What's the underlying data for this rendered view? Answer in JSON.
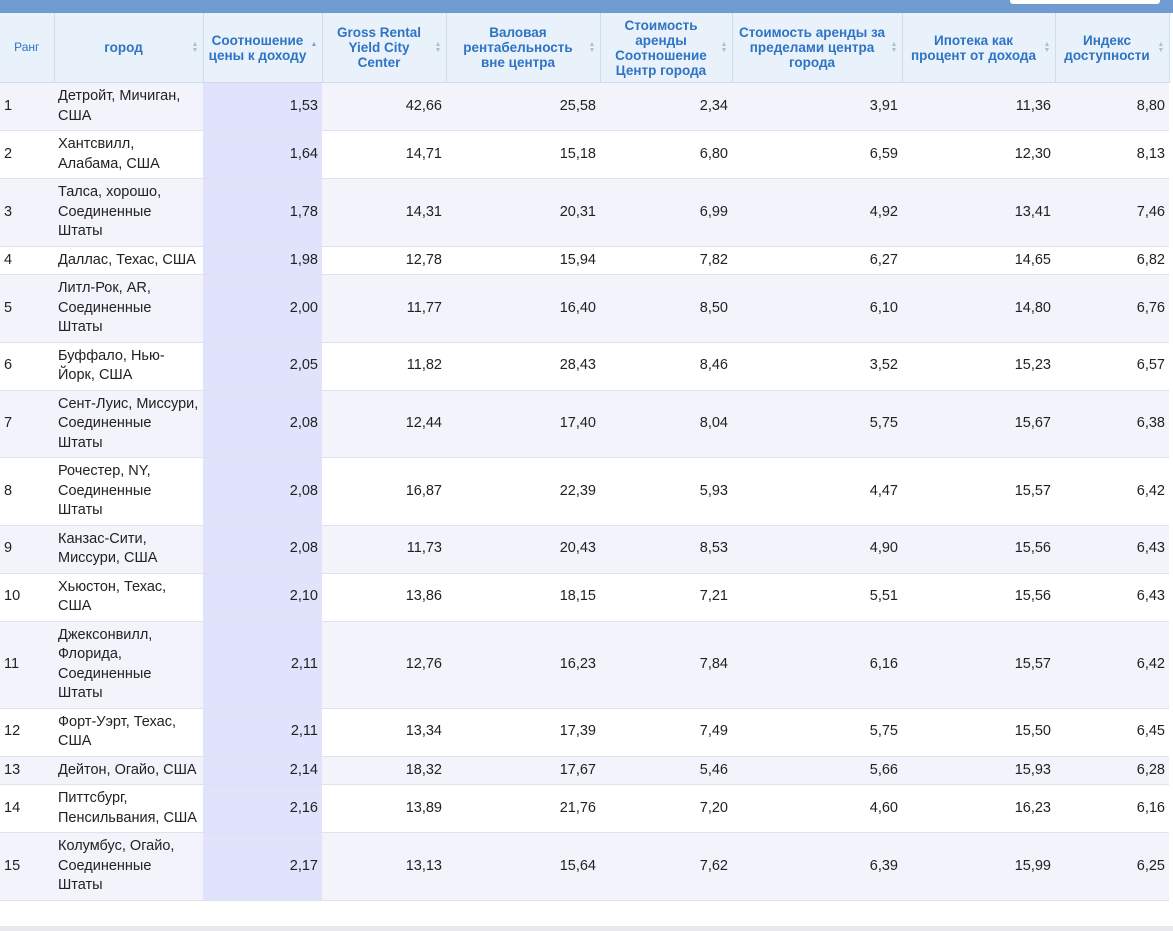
{
  "columns": [
    {
      "label": "Ранг"
    },
    {
      "label": "город"
    },
    {
      "label": "Соотношение цены к доходу"
    },
    {
      "label": "Gross Rental Yield City Center"
    },
    {
      "label": "Валовая рентабельность вне центра"
    },
    {
      "label": "Стоимость аренды Соотношение Центр города"
    },
    {
      "label": "Стоимость аренды за пределами центра города"
    },
    {
      "label": "Ипотека как процент от дохода"
    },
    {
      "label": "Индекс доступности"
    }
  ],
  "rows": [
    {
      "rank": "1",
      "city": "Детройт, Мичиган, США",
      "c1": "1,53",
      "c2": "42,66",
      "c3": "25,58",
      "c4": "2,34",
      "c5": "3,91",
      "c6": "11,36",
      "c7": "8,80"
    },
    {
      "rank": "2",
      "city": "Хантсвилл, Алабама, США",
      "c1": "1,64",
      "c2": "14,71",
      "c3": "15,18",
      "c4": "6,80",
      "c5": "6,59",
      "c6": "12,30",
      "c7": "8,13"
    },
    {
      "rank": "3",
      "city": "Талса, хорошо, Соединенные Штаты",
      "c1": "1,78",
      "c2": "14,31",
      "c3": "20,31",
      "c4": "6,99",
      "c5": "4,92",
      "c6": "13,41",
      "c7": "7,46"
    },
    {
      "rank": "4",
      "city": "Даллас, Техас, США",
      "c1": "1,98",
      "c2": "12,78",
      "c3": "15,94",
      "c4": "7,82",
      "c5": "6,27",
      "c6": "14,65",
      "c7": "6,82"
    },
    {
      "rank": "5",
      "city": "Литл-Рок, AR, Соединенные Штаты",
      "c1": "2,00",
      "c2": "11,77",
      "c3": "16,40",
      "c4": "8,50",
      "c5": "6,10",
      "c6": "14,80",
      "c7": "6,76"
    },
    {
      "rank": "6",
      "city": "Буффало, Нью-Йорк, США",
      "c1": "2,05",
      "c2": "11,82",
      "c3": "28,43",
      "c4": "8,46",
      "c5": "3,52",
      "c6": "15,23",
      "c7": "6,57"
    },
    {
      "rank": "7",
      "city": "Сент-Луис, Миссури, Соединенные Штаты",
      "c1": "2,08",
      "c2": "12,44",
      "c3": "17,40",
      "c4": "8,04",
      "c5": "5,75",
      "c6": "15,67",
      "c7": "6,38"
    },
    {
      "rank": "8",
      "city": "Рочестер, NY, Соединенные Штаты",
      "c1": "2,08",
      "c2": "16,87",
      "c3": "22,39",
      "c4": "5,93",
      "c5": "4,47",
      "c6": "15,57",
      "c7": "6,42"
    },
    {
      "rank": "9",
      "city": "Канзас-Сити, Миссури, США",
      "c1": "2,08",
      "c2": "11,73",
      "c3": "20,43",
      "c4": "8,53",
      "c5": "4,90",
      "c6": "15,56",
      "c7": "6,43"
    },
    {
      "rank": "10",
      "city": "Хьюстон, Техас, США",
      "c1": "2,10",
      "c2": "13,86",
      "c3": "18,15",
      "c4": "7,21",
      "c5": "5,51",
      "c6": "15,56",
      "c7": "6,43"
    },
    {
      "rank": "11",
      "city": "Джексонвилл, Флорида, Соединенные Штаты",
      "c1": "2,11",
      "c2": "12,76",
      "c3": "16,23",
      "c4": "7,84",
      "c5": "6,16",
      "c6": "15,57",
      "c7": "6,42"
    },
    {
      "rank": "12",
      "city": "Форт-Уэрт, Техас, США",
      "c1": "2,11",
      "c2": "13,34",
      "c3": "17,39",
      "c4": "7,49",
      "c5": "5,75",
      "c6": "15,50",
      "c7": "6,45"
    },
    {
      "rank": "13",
      "city": "Дейтон, Огайо, США",
      "c1": "2,14",
      "c2": "18,32",
      "c3": "17,67",
      "c4": "5,46",
      "c5": "5,66",
      "c6": "15,93",
      "c7": "6,28"
    },
    {
      "rank": "14",
      "city": "Питтсбург, Пенсильвания, США",
      "c1": "2,16",
      "c2": "13,89",
      "c3": "21,76",
      "c4": "7,20",
      "c5": "4,60",
      "c6": "16,23",
      "c7": "6,16"
    },
    {
      "rank": "15",
      "city": "Колумбус, Огайо, Соединенные Штаты",
      "c1": "2,17",
      "c2": "13,13",
      "c3": "15,64",
      "c4": "7,62",
      "c5": "6,39",
      "c6": "15,99",
      "c7": "6,25"
    }
  ],
  "colors": {
    "header_text": "#2f73c3",
    "header_bg": "#e9f2fb",
    "sorted_column_bg": "#e0e3fb",
    "topbar": "#6f9bd0"
  },
  "icons": {
    "sort": "sort-both-icon",
    "sorted": "sort-asc-icon"
  }
}
